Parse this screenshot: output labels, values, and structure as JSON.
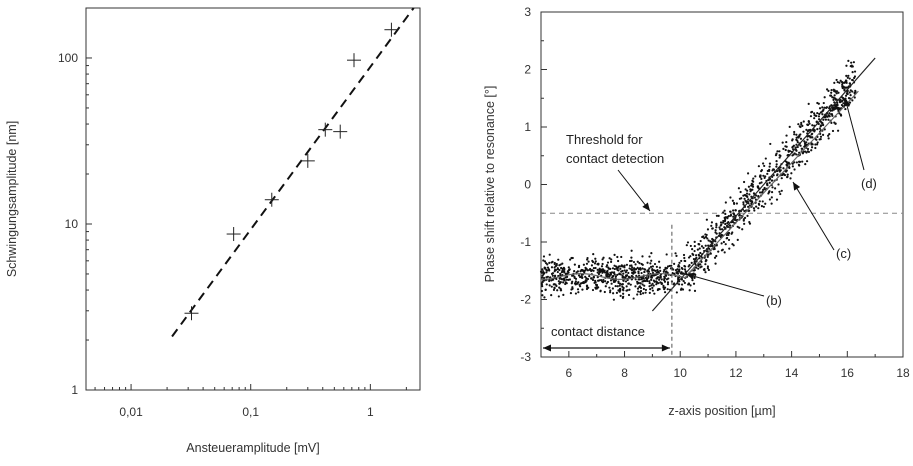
{
  "chart_data": [
    {
      "type": "scatter",
      "xlabel": "Ansteueramplitude [mV]",
      "ylabel": "Schwingungsamplitude [nm]",
      "x_scale": "log",
      "y_scale": "log",
      "xlim": [
        0.0042,
        2.6
      ],
      "ylim": [
        1,
        200
      ],
      "x_ticks": [
        0.01,
        0.1,
        1
      ],
      "x_tick_labels": [
        "0,01",
        "0,1",
        "1"
      ],
      "y_ticks": [
        1,
        10,
        100
      ],
      "y_tick_labels": [
        "1",
        "10",
        "100"
      ],
      "marker": "cross",
      "grid": false,
      "series": [
        {
          "x": [
            0.032,
            0.072,
            0.15,
            0.3,
            0.42,
            0.56,
            0.73,
            1.5
          ],
          "y": [
            2.9,
            8.7,
            14,
            24,
            37,
            36,
            97,
            148
          ]
        }
      ],
      "fit_line": {
        "style": "dashed",
        "x": [
          0.022,
          2.3
        ],
        "y": [
          2.1,
          200
        ]
      }
    },
    {
      "type": "scatter",
      "xlabel": "z-axis position [µm]",
      "ylabel": "Phase shift relative to resonance [°]",
      "xlim": [
        5,
        18
      ],
      "ylim": [
        -3,
        3
      ],
      "x_ticks": [
        6,
        8,
        10,
        12,
        14,
        16,
        18
      ],
      "x_tick_labels": [
        "6",
        "8",
        "10",
        "12",
        "14",
        "16",
        "18"
      ],
      "y_ticks": [
        -3,
        -2,
        -1,
        0,
        1,
        2,
        3
      ],
      "y_tick_labels": [
        "-3",
        "-2",
        "-1",
        "0",
        "1",
        "2",
        "3"
      ],
      "grid": false,
      "threshold": {
        "y": -0.5,
        "style": "dashed"
      },
      "contact_marker_x": 9.7,
      "flat_level": -1.6,
      "rising_line": {
        "x": [
          9.0,
          17.0
        ],
        "y": [
          -2.2,
          2.2
        ]
      },
      "annotations": {
        "threshold_line1": "Threshold for",
        "threshold_line2": "contact detection",
        "contact_distance": "contact distance",
        "b": "(b)",
        "c": "(c)",
        "d": "(d)"
      }
    }
  ]
}
